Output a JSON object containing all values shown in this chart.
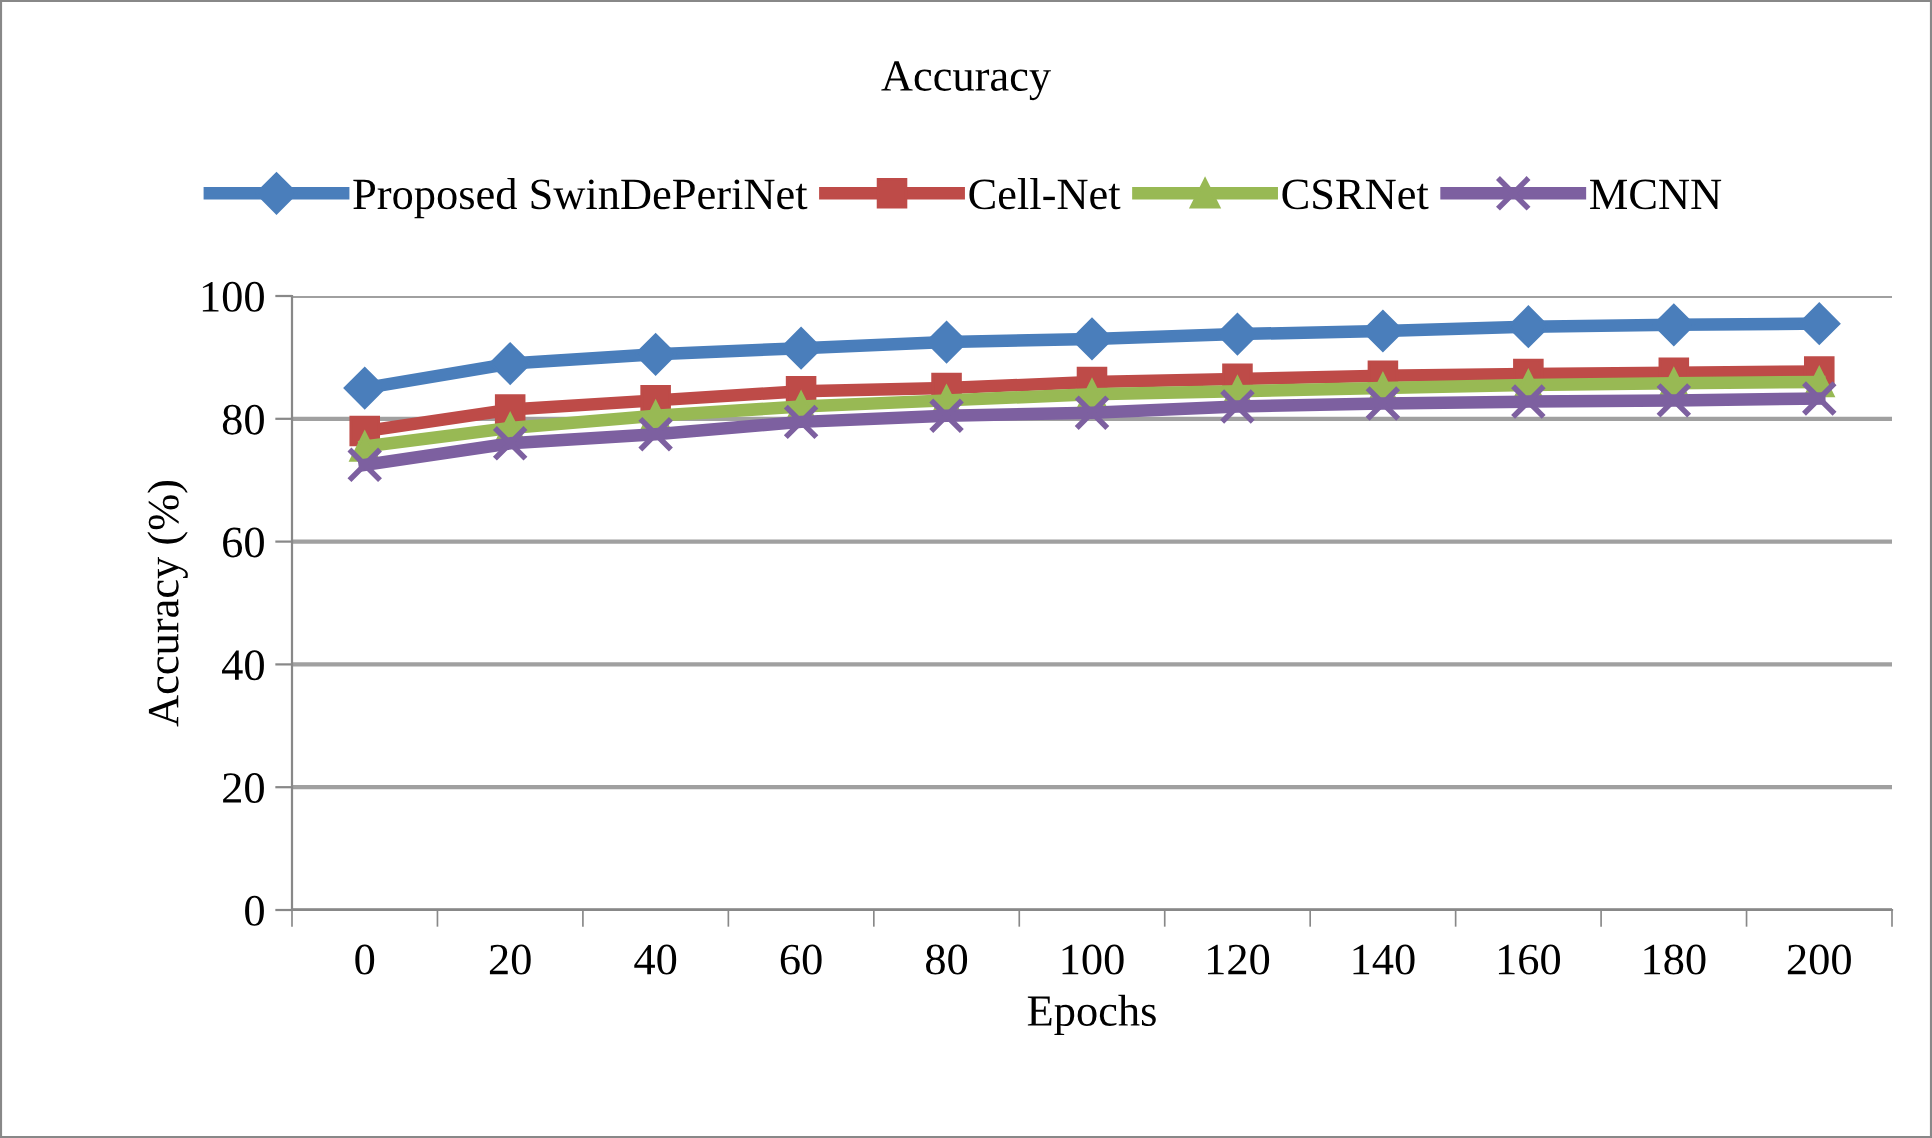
{
  "chart_data": {
    "type": "line",
    "title": "Accuracy",
    "xlabel": "Epochs",
    "ylabel": "Accuracy (%)",
    "categories": [
      "0",
      "20",
      "40",
      "60",
      "80",
      "100",
      "120",
      "140",
      "160",
      "180",
      "200"
    ],
    "series": [
      {
        "name": "Proposed SwinDePeriNet",
        "color": "#4a7ebb",
        "marker": "diamond",
        "values": [
          85,
          89,
          90.5,
          91.5,
          92.5,
          93,
          93.8,
          94.3,
          95,
          95.3,
          95.5
        ]
      },
      {
        "name": "Cell-Net",
        "color": "#be4b48",
        "marker": "square",
        "values": [
          78,
          81.5,
          83,
          84.5,
          85,
          86,
          86.5,
          87,
          87.3,
          87.5,
          87.7
        ]
      },
      {
        "name": "CSRNet",
        "color": "#98b954",
        "marker": "triangle",
        "values": [
          75.5,
          78.5,
          80.5,
          82,
          83,
          84,
          84.5,
          85,
          85.5,
          85.8,
          86
        ]
      },
      {
        "name": "MCNN",
        "color": "#7d60a0",
        "marker": "cross",
        "values": [
          72.5,
          76,
          77.5,
          79.5,
          80.5,
          81,
          82,
          82.5,
          82.8,
          83,
          83.3
        ]
      }
    ],
    "ylim": [
      0,
      100
    ],
    "yticks": [
      0,
      20,
      40,
      60,
      80,
      100
    ],
    "grid": "y",
    "legend": "top",
    "line_style": "solid"
  }
}
